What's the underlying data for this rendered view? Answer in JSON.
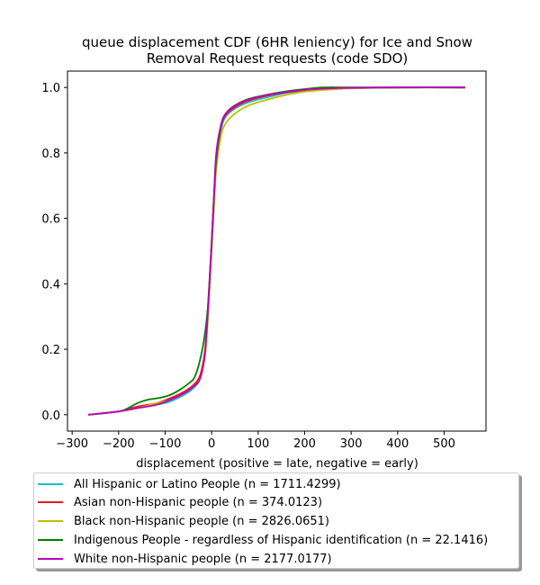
{
  "chart_data": {
    "type": "line",
    "title_line1": "queue displacement CDF (6HR leniency) for Ice and Snow",
    "title_line2": "Removal Request  requests (code SDO)",
    "xlabel": "displacement (positive = late, negative = early)",
    "ylabel": "",
    "xlim": [
      -310,
      590
    ],
    "ylim": [
      -0.05,
      1.05
    ],
    "xticks": [
      -300,
      -200,
      -100,
      0,
      100,
      200,
      300,
      400,
      500
    ],
    "xtick_labels": [
      "−300",
      "−200",
      "−100",
      "0",
      "100",
      "200",
      "300",
      "400",
      "500"
    ],
    "yticks": [
      0.0,
      0.2,
      0.4,
      0.6,
      0.8,
      1.0
    ],
    "ytick_labels": [
      "0.0",
      "0.2",
      "0.4",
      "0.6",
      "0.8",
      "1.0"
    ],
    "legend_position": "bottom",
    "series": [
      {
        "name": "All Hispanic or Latino People (n = 1711.4299)",
        "color": "#17becf",
        "x": [
          -265,
          -200,
          -160,
          -120,
          -90,
          -60,
          -40,
          -25,
          -15,
          -10,
          -5,
          0,
          5,
          10,
          20,
          30,
          50,
          80,
          120,
          160,
          200,
          250,
          300,
          400,
          545
        ],
        "y": [
          0.0,
          0.01,
          0.02,
          0.03,
          0.04,
          0.06,
          0.08,
          0.11,
          0.18,
          0.26,
          0.38,
          0.52,
          0.66,
          0.78,
          0.87,
          0.91,
          0.935,
          0.955,
          0.97,
          0.983,
          0.99,
          0.996,
          0.998,
          1.0,
          1.0
        ]
      },
      {
        "name": "Asian non-Hispanic people (n = 374.0123)",
        "color": "#e41a1c",
        "x": [
          -265,
          -200,
          -160,
          -120,
          -90,
          -60,
          -40,
          -25,
          -15,
          -10,
          -5,
          0,
          5,
          10,
          20,
          30,
          50,
          80,
          120,
          160,
          200,
          250,
          300,
          400,
          545
        ],
        "y": [
          0.0,
          0.01,
          0.025,
          0.035,
          0.05,
          0.07,
          0.09,
          0.12,
          0.19,
          0.28,
          0.4,
          0.53,
          0.67,
          0.79,
          0.88,
          0.915,
          0.94,
          0.96,
          0.975,
          0.985,
          0.992,
          0.997,
          0.999,
          1.0,
          1.0
        ]
      },
      {
        "name": "Black non-Hispanic people (n = 2826.0651)",
        "color": "#bfbf00",
        "x": [
          -265,
          -200,
          -160,
          -120,
          -90,
          -60,
          -40,
          -25,
          -15,
          -10,
          -5,
          0,
          5,
          10,
          20,
          30,
          50,
          80,
          120,
          160,
          200,
          250,
          300,
          400,
          545
        ],
        "y": [
          0.0,
          0.01,
          0.02,
          0.035,
          0.045,
          0.065,
          0.085,
          0.11,
          0.17,
          0.25,
          0.37,
          0.5,
          0.63,
          0.75,
          0.85,
          0.89,
          0.92,
          0.945,
          0.963,
          0.977,
          0.987,
          0.993,
          0.997,
          1.0,
          1.0
        ]
      },
      {
        "name": "Indigenous People - regardless of Hispanic identification (n = 22.1416)",
        "color": "#008000",
        "x": [
          -265,
          -200,
          -180,
          -160,
          -140,
          -110,
          -90,
          -70,
          -50,
          -35,
          -20,
          -10,
          -5,
          0,
          5,
          10,
          20,
          30,
          50,
          80,
          120,
          160,
          200,
          240,
          300,
          400,
          545
        ],
        "y": [
          0.0,
          0.01,
          0.02,
          0.035,
          0.045,
          0.052,
          0.06,
          0.075,
          0.095,
          0.12,
          0.2,
          0.3,
          0.4,
          0.52,
          0.66,
          0.78,
          0.88,
          0.92,
          0.945,
          0.965,
          0.978,
          0.988,
          0.995,
          1.0,
          1.0,
          1.0,
          1.0
        ]
      },
      {
        "name": "White non-Hispanic people (n = 2177.0177)",
        "color": "#bf00bf",
        "x": [
          -265,
          -200,
          -160,
          -120,
          -90,
          -60,
          -40,
          -25,
          -15,
          -10,
          -5,
          0,
          5,
          10,
          20,
          30,
          50,
          80,
          120,
          160,
          200,
          250,
          300,
          400,
          545
        ],
        "y": [
          0.0,
          0.01,
          0.02,
          0.03,
          0.045,
          0.065,
          0.085,
          0.11,
          0.18,
          0.27,
          0.39,
          0.53,
          0.67,
          0.8,
          0.885,
          0.92,
          0.945,
          0.963,
          0.977,
          0.986,
          0.993,
          0.997,
          0.999,
          1.0,
          1.0
        ]
      }
    ]
  }
}
